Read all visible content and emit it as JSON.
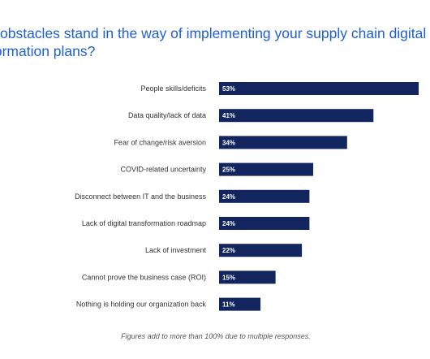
{
  "chart_data": {
    "type": "bar",
    "orientation": "horizontal",
    "title_lines": [
      "obstacles stand in the way of implementing your supply chain digital",
      "formation plans?"
    ],
    "categories": [
      "People skills/deficits",
      "Data quality/lack of data",
      "Fear of change/risk aversion",
      "COVID-related uncertainty",
      "Disconnect between IT and the business",
      "Lack of digital transformation roadmap",
      "Lack of investment",
      "Cannot prove the business case (ROI)",
      "Nothing is holding our organization back"
    ],
    "values": [
      53,
      41,
      34,
      25,
      24,
      24,
      22,
      15,
      11
    ],
    "value_labels": [
      "53%",
      "41%",
      "34%",
      "25%",
      "24%",
      "24%",
      "22%",
      "15%",
      "11%"
    ],
    "xlim": [
      0,
      53
    ],
    "grid": false,
    "legend": "none",
    "bar_color": "#13255f",
    "title_color": "#1f5fd6"
  },
  "footnote": "Figures add to more than 100% due to multiple responses."
}
